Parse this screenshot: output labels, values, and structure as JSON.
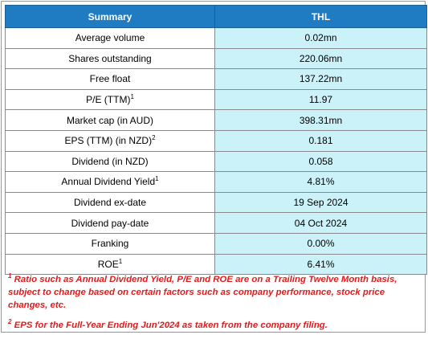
{
  "table": {
    "headers": [
      "Summary",
      "THL"
    ],
    "rows": [
      {
        "label": "Average volume",
        "sup": "",
        "value": "0.02mn"
      },
      {
        "label": "Shares outstanding",
        "sup": "",
        "value": "220.06mn"
      },
      {
        "label": "Free float",
        "sup": "",
        "value": "137.22mn"
      },
      {
        "label": "P/E (TTM)",
        "sup": "1",
        "value": "11.97"
      },
      {
        "label": "Market cap (in AUD)",
        "sup": "",
        "value": "398.31mn"
      },
      {
        "label": "EPS (TTM) (in NZD)",
        "sup": "2",
        "value": "0.181"
      },
      {
        "label": "Dividend (in NZD)",
        "sup": "",
        "value": "0.058"
      },
      {
        "label": "Annual Dividend Yield",
        "sup": "1",
        "value": "4.81%"
      },
      {
        "label": "Dividend ex-date",
        "sup": "",
        "value": "19 Sep 2024"
      },
      {
        "label": "Dividend pay-date",
        "sup": "",
        "value": "04 Oct 2024"
      },
      {
        "label": "Franking",
        "sup": "",
        "value": "0.00%"
      },
      {
        "label": "ROE",
        "sup": "1",
        "value": "6.41%"
      }
    ]
  },
  "footnotes": [
    {
      "marker": "1",
      "text": " Ratio such as Annual Dividend Yield, P/E and ROE are on a Trailing Twelve Month basis, subject to change based on certain factors such as company performance, stock price changes, etc."
    },
    {
      "marker": "2",
      "text": " EPS for the Full-Year Ending Jun'2024 as taken from the company filing."
    }
  ],
  "colors": {
    "header_bg": "#1f7cc3",
    "value_bg": "#ccf2f9",
    "footnote_text": "#e01b1b"
  }
}
